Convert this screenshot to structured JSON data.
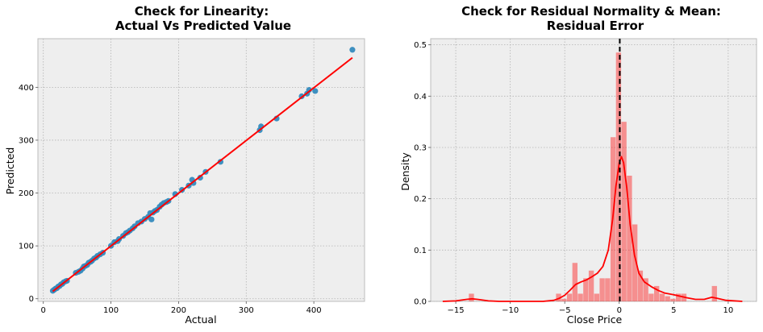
{
  "chart_data": [
    {
      "type": "scatter",
      "title": [
        "Check for Linearity:",
        "Actual Vs Predicted Value"
      ],
      "xlabel": "Actual",
      "ylabel": "Predicted",
      "xlim": [
        -8,
        475
      ],
      "ylim": [
        -5,
        492
      ],
      "xticks": [
        0,
        100,
        200,
        300,
        400
      ],
      "yticks": [
        0,
        100,
        200,
        300,
        400
      ],
      "grid": true,
      "point_color": "#348ABD",
      "line_color": "#FF0000",
      "fit_line": {
        "x": [
          14,
          457
        ],
        "y": [
          14,
          456
        ]
      },
      "points": [
        [
          14,
          15
        ],
        [
          16,
          17
        ],
        [
          18,
          19
        ],
        [
          20,
          20
        ],
        [
          22,
          23
        ],
        [
          24,
          24
        ],
        [
          26,
          27
        ],
        [
          28,
          28
        ],
        [
          30,
          31
        ],
        [
          33,
          33
        ],
        [
          35,
          34
        ],
        [
          48,
          49
        ],
        [
          52,
          51
        ],
        [
          55,
          53
        ],
        [
          58,
          57
        ],
        [
          60,
          61
        ],
        [
          62,
          62
        ],
        [
          65,
          64
        ],
        [
          67,
          68
        ],
        [
          70,
          70
        ],
        [
          72,
          72
        ],
        [
          75,
          76
        ],
        [
          78,
          78
        ],
        [
          80,
          81
        ],
        [
          84,
          84
        ],
        [
          88,
          87
        ],
        [
          100,
          100
        ],
        [
          105,
          107
        ],
        [
          110,
          109
        ],
        [
          112,
          113
        ],
        [
          118,
          119
        ],
        [
          122,
          124
        ],
        [
          125,
          126
        ],
        [
          128,
          129
        ],
        [
          132,
          133
        ],
        [
          135,
          137
        ],
        [
          140,
          143
        ],
        [
          145,
          146
        ],
        [
          150,
          151
        ],
        [
          155,
          155
        ],
        [
          158,
          162
        ],
        [
          160,
          150
        ],
        [
          162,
          163
        ],
        [
          165,
          166
        ],
        [
          168,
          168
        ],
        [
          172,
          174
        ],
        [
          175,
          178
        ],
        [
          178,
          181
        ],
        [
          182,
          183
        ],
        [
          185,
          185
        ],
        [
          195,
          198
        ],
        [
          205,
          206
        ],
        [
          215,
          214
        ],
        [
          220,
          225
        ],
        [
          222,
          219
        ],
        [
          232,
          229
        ],
        [
          240,
          240
        ],
        [
          262,
          259
        ],
        [
          320,
          319
        ],
        [
          322,
          326
        ],
        [
          345,
          341
        ],
        [
          382,
          383
        ],
        [
          390,
          388
        ],
        [
          393,
          395
        ],
        [
          402,
          393
        ],
        [
          457,
          471
        ]
      ]
    },
    {
      "type": "bar",
      "title": [
        "Check for Residual Normality & Mean:",
        "Residual Error"
      ],
      "xlabel": "Close Price",
      "ylabel": "Density",
      "xlim": [
        -17.3,
        12.6
      ],
      "ylim": [
        0,
        0.512
      ],
      "xticks": [
        -15,
        -10,
        -5,
        0,
        5,
        10
      ],
      "yticks": [
        0,
        0.1,
        0.2,
        0.3,
        0.4,
        0.5
      ],
      "grid": true,
      "bar_color": "#FF0000",
      "kde_color": "#FF0000",
      "mean_line_x": 0.05,
      "bins": [
        [
          -13.8,
          -13.3,
          0.015
        ],
        [
          -5.8,
          -5.3,
          0.015
        ],
        [
          -5.3,
          -4.8,
          0.005
        ],
        [
          -4.8,
          -4.3,
          0.015
        ],
        [
          -4.3,
          -3.8,
          0.075
        ],
        [
          -3.8,
          -3.3,
          0.015
        ],
        [
          -3.3,
          -2.8,
          0.045
        ],
        [
          -2.8,
          -2.3,
          0.06
        ],
        [
          -2.3,
          -1.8,
          0.015
        ],
        [
          -1.8,
          -1.3,
          0.045
        ],
        [
          -1.3,
          -0.8,
          0.045
        ],
        [
          -0.8,
          -0.3,
          0.32
        ],
        [
          -0.3,
          0.2,
          0.485
        ],
        [
          0.2,
          0.7,
          0.35
        ],
        [
          0.7,
          1.2,
          0.245
        ],
        [
          1.2,
          1.7,
          0.15
        ],
        [
          1.7,
          2.2,
          0.06
        ],
        [
          2.2,
          2.7,
          0.045
        ],
        [
          2.7,
          3.2,
          0.015
        ],
        [
          3.2,
          3.7,
          0.03
        ],
        [
          3.7,
          4.2,
          0.015
        ],
        [
          4.2,
          4.7,
          0.01
        ],
        [
          4.7,
          5.2,
          0.005
        ],
        [
          5.2,
          5.7,
          0.015
        ],
        [
          5.7,
          6.2,
          0.015
        ],
        [
          8.5,
          9.0,
          0.03
        ]
      ],
      "kde": [
        [
          -16.2,
          0.0
        ],
        [
          -15.0,
          0.001
        ],
        [
          -14.0,
          0.004
        ],
        [
          -13.5,
          0.005
        ],
        [
          -13.0,
          0.004
        ],
        [
          -12.0,
          0.001
        ],
        [
          -11.0,
          0.0
        ],
        [
          -9.0,
          0.0
        ],
        [
          -7.0,
          0.0
        ],
        [
          -6.0,
          0.002
        ],
        [
          -5.5,
          0.006
        ],
        [
          -5.0,
          0.012
        ],
        [
          -4.5,
          0.022
        ],
        [
          -4.0,
          0.033
        ],
        [
          -3.5,
          0.038
        ],
        [
          -3.0,
          0.042
        ],
        [
          -2.5,
          0.048
        ],
        [
          -2.0,
          0.055
        ],
        [
          -1.5,
          0.068
        ],
        [
          -1.0,
          0.1
        ],
        [
          -0.6,
          0.16
        ],
        [
          -0.3,
          0.225
        ],
        [
          0.0,
          0.27
        ],
        [
          0.2,
          0.282
        ],
        [
          0.4,
          0.27
        ],
        [
          0.7,
          0.22
        ],
        [
          1.0,
          0.15
        ],
        [
          1.4,
          0.09
        ],
        [
          1.8,
          0.055
        ],
        [
          2.3,
          0.038
        ],
        [
          3.0,
          0.028
        ],
        [
          3.6,
          0.021
        ],
        [
          4.2,
          0.016
        ],
        [
          5.0,
          0.013
        ],
        [
          5.6,
          0.01
        ],
        [
          6.2,
          0.007
        ],
        [
          7.0,
          0.004
        ],
        [
          7.8,
          0.004
        ],
        [
          8.5,
          0.008
        ],
        [
          9.0,
          0.006
        ],
        [
          9.8,
          0.002
        ],
        [
          11.3,
          0.0
        ]
      ]
    }
  ]
}
